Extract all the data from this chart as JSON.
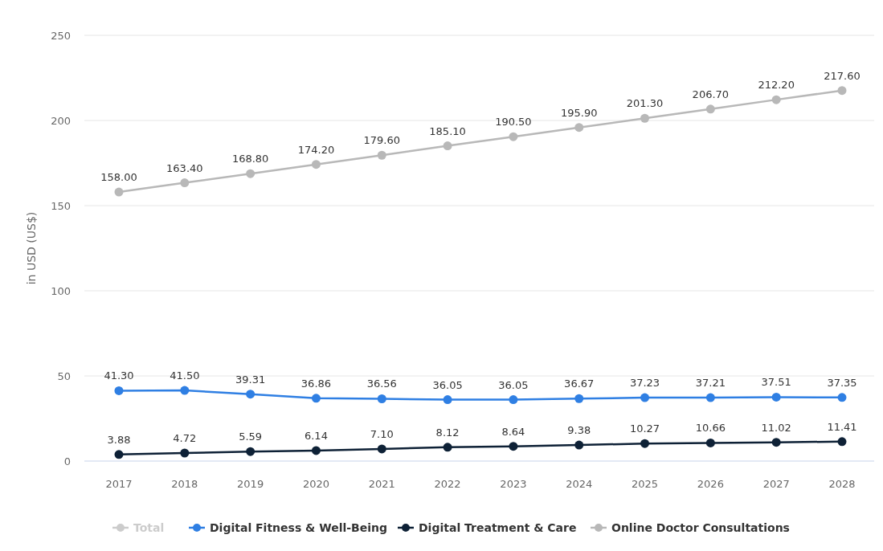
{
  "chart_data": {
    "type": "line",
    "ylabel": "in USD (US$)",
    "categories": [
      "2017",
      "2018",
      "2019",
      "2020",
      "2021",
      "2022",
      "2023",
      "2024",
      "2025",
      "2026",
      "2027",
      "2028"
    ],
    "series": [
      {
        "name": "Total",
        "color": "#cccccc",
        "values": [
          null,
          null,
          null,
          null,
          null,
          null,
          null,
          null,
          null,
          null,
          null,
          null
        ]
      },
      {
        "name": "Digital Fitness & Well-Being",
        "color": "#2f7fe3",
        "values": [
          41.3,
          41.5,
          39.31,
          36.86,
          36.56,
          36.05,
          36.05,
          36.67,
          37.23,
          37.21,
          37.51,
          37.35
        ],
        "value_labels": [
          "41.30",
          "41.50",
          "39.31",
          "36.86",
          "36.56",
          "36.05",
          "36.05",
          "36.67",
          "37.23",
          "37.21",
          "37.51",
          "37.35"
        ]
      },
      {
        "name": "Digital Treatment & Care",
        "color": "#0e2136",
        "values": [
          3.88,
          4.72,
          5.59,
          6.14,
          7.1,
          8.12,
          8.64,
          9.38,
          10.27,
          10.66,
          11.02,
          11.41
        ],
        "value_labels": [
          "3.88",
          "4.72",
          "5.59",
          "6.14",
          "7.10",
          "8.12",
          "8.64",
          "9.38",
          "10.27",
          "10.66",
          "11.02",
          "11.41"
        ]
      },
      {
        "name": "Online Doctor Consultations",
        "color": "#b8b8b8",
        "values": [
          158.0,
          163.4,
          168.8,
          174.2,
          179.6,
          185.1,
          190.5,
          195.9,
          201.3,
          206.7,
          212.2,
          217.6
        ],
        "value_labels": [
          "158.00",
          "163.40",
          "168.80",
          "174.20",
          "179.60",
          "185.10",
          "190.50",
          "195.90",
          "201.30",
          "206.70",
          "212.20",
          "217.60"
        ]
      }
    ],
    "ylim": [
      0,
      250
    ],
    "yticks": [
      0,
      50,
      100,
      150,
      200,
      250
    ],
    "grid": "y",
    "legend": "bottom",
    "marker": "circle",
    "line_style": "solid"
  }
}
